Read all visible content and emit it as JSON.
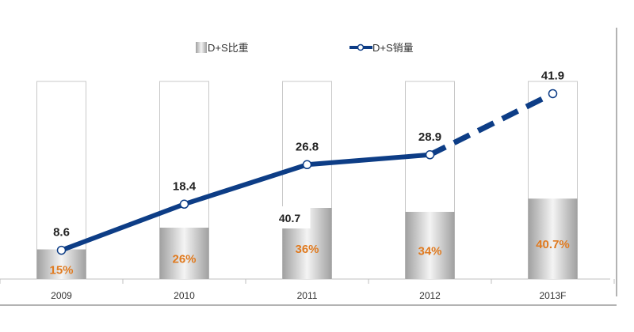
{
  "chart_data": {
    "type": "bar",
    "categories": [
      "2009",
      "2010",
      "2011",
      "2012",
      "2013F"
    ],
    "legend": {
      "bar_label": "D+S比重",
      "line_label": "D+S销量",
      "position": "top"
    },
    "series": [
      {
        "name": "D+S比重",
        "kind": "bar",
        "values": [
          15,
          26,
          36,
          34,
          40.7
        ],
        "value_labels": [
          "15%",
          "26%",
          "36%",
          "34%",
          "40.7%"
        ],
        "ylim": [
          0,
          100
        ]
      },
      {
        "name": "D+S销量",
        "kind": "line",
        "values": [
          8.6,
          18.4,
          26.8,
          28.9,
          41.9
        ],
        "value_labels": [
          "8.6",
          "18.4",
          "26.8",
          "28.9",
          "41.9"
        ],
        "forecast_from_index": 3
      }
    ],
    "annotations": [
      {
        "category": "2011",
        "text": "40.7"
      }
    ],
    "colors": {
      "line": "#0d3d86",
      "bar_outline": "#c8c8c8",
      "bar_fill_dark": "#a0a0a0",
      "bar_fill_light": "#f4f4f4",
      "bar_value_text": "#e07a1f",
      "line_value_text": "#222222",
      "axis": "#bfbfbf",
      "frame": "#9a9a9a"
    }
  }
}
